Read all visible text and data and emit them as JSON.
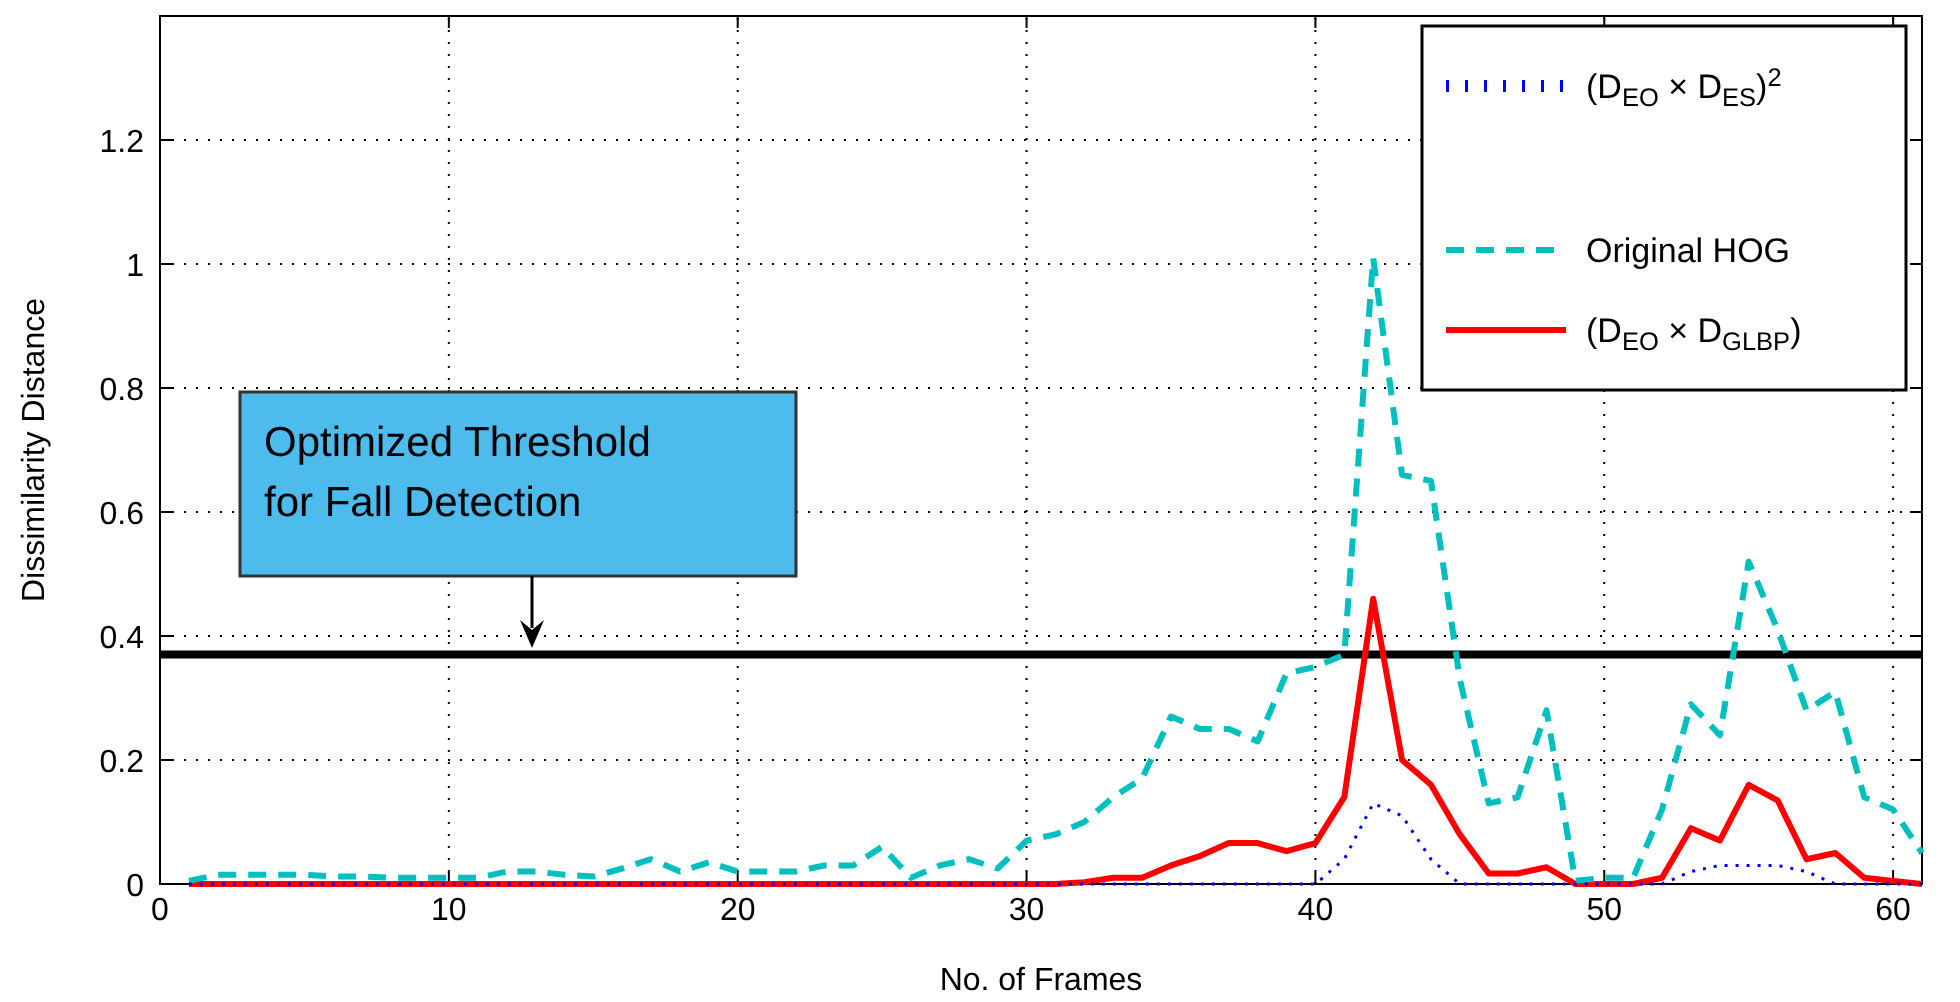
{
  "chart_data": {
    "type": "line",
    "xlabel": "No. of Frames",
    "ylabel": "Dissimilarity Distance",
    "x": [
      1,
      2,
      3,
      4,
      5,
      6,
      7,
      8,
      9,
      10,
      11,
      12,
      13,
      14,
      15,
      16,
      17,
      18,
      19,
      20,
      21,
      22,
      23,
      24,
      25,
      26,
      27,
      28,
      29,
      30,
      31,
      32,
      33,
      34,
      35,
      36,
      37,
      38,
      39,
      40,
      41,
      42,
      43,
      44,
      45,
      46,
      47,
      48,
      49,
      50,
      51,
      52,
      53,
      54,
      55,
      56,
      57,
      58,
      59,
      60,
      61
    ],
    "series": [
      {
        "name": "(D$_{EO}$ × D$_{ES}$)$^{2}$",
        "color": "#0000ff",
        "line_style": "dotted",
        "values": [
          0,
          0,
          0,
          0,
          0,
          0,
          0,
          0,
          0,
          0,
          0,
          0,
          0,
          0,
          0,
          0,
          0,
          0,
          0,
          0,
          0,
          0,
          0,
          0,
          0,
          0,
          0,
          0,
          0,
          0,
          0,
          0,
          0,
          0,
          0,
          0,
          0,
          0,
          0,
          0,
          0.04,
          0.13,
          0.11,
          0.04,
          0,
          0,
          0,
          0,
          0,
          0,
          0,
          0,
          0.02,
          0.03,
          0.03,
          0.03,
          0.02,
          0,
          0,
          0,
          0
        ]
      },
      {
        "name": "Original HOG",
        "color": "#00bfbf",
        "line_style": "dashed",
        "values": [
          0.005,
          0.015,
          0.015,
          0.015,
          0.015,
          0.012,
          0.012,
          0.01,
          0.01,
          0.01,
          0.01,
          0.02,
          0.02,
          0.015,
          0.012,
          0.025,
          0.04,
          0.02,
          0.035,
          0.02,
          0.02,
          0.02,
          0.03,
          0.03,
          0.06,
          0.01,
          0.03,
          0.04,
          0.025,
          0.07,
          0.08,
          0.1,
          0.14,
          0.17,
          0.27,
          0.25,
          0.25,
          0.23,
          0.34,
          0.35,
          0.37,
          1.01,
          0.66,
          0.65,
          0.33,
          0.13,
          0.14,
          0.28,
          0.005,
          0.01,
          0.01,
          0.12,
          0.29,
          0.24,
          0.52,
          0.41,
          0.28,
          0.31,
          0.14,
          0.12,
          0.05
        ]
      },
      {
        "name": "(D$_{EO}$ × D$_{GLBP}$)",
        "color": "#ff0000",
        "line_style": "solid",
        "values": [
          0,
          0,
          0,
          0,
          0,
          0,
          0,
          0,
          0,
          0,
          0,
          0,
          0,
          0,
          0,
          0,
          0,
          0,
          0,
          0,
          0,
          0,
          0,
          0,
          0,
          0,
          0,
          0,
          0,
          0,
          0,
          0.003,
          0.01,
          0.01,
          0.03,
          0.045,
          0.066,
          0.066,
          0.053,
          0.066,
          0.14,
          0.46,
          0.2,
          0.16,
          0.08,
          0.017,
          0.017,
          0.027,
          0,
          0,
          0,
          0.01,
          0.09,
          0.07,
          0.16,
          0.135,
          0.04,
          0.05,
          0.01,
          0.005,
          0
        ]
      }
    ],
    "xlim": [
      0,
      61
    ],
    "xticks": [
      0,
      10,
      20,
      30,
      40,
      50,
      60
    ],
    "ylim": [
      0,
      1.4
    ],
    "yticks": [
      0,
      0.2,
      0.4,
      0.6,
      0.8,
      1,
      1.2
    ],
    "grid": true,
    "legend": "top right",
    "marker": "none",
    "ref_lines": [
      {
        "axis": "y",
        "value": 0.37,
        "color": "#000000"
      }
    ],
    "annotations": [
      "Optimized Threshold\nfor Fall Detection"
    ]
  }
}
